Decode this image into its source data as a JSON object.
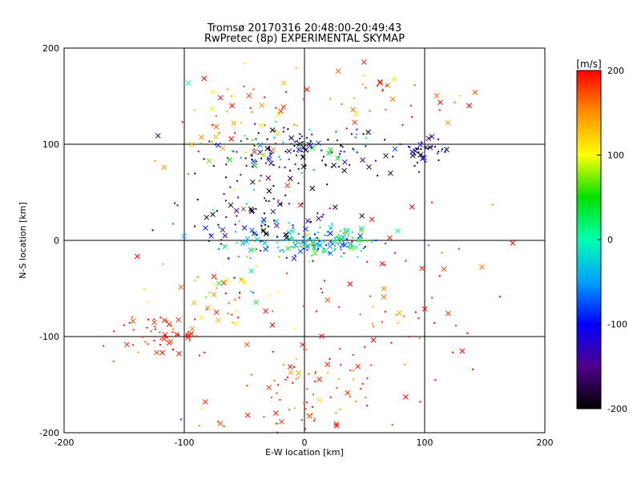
{
  "chart_data": {
    "type": "scatter",
    "title": "Tromsø 20170316 20:48:00-20:49:43",
    "subtitle": "RwPretec (8p) EXPERIMENTAL SKYMAP",
    "xlabel": "E-W location [km]",
    "ylabel": "N-S location [km]",
    "xlim": [
      -200,
      200
    ],
    "ylim": [
      -200,
      200
    ],
    "xticks": [
      "-200",
      "-100",
      "0",
      "100",
      "200"
    ],
    "yticks": [
      "-200",
      "-100",
      "0",
      "100",
      "200"
    ],
    "grid": true,
    "colorbar": {
      "label": "[m/s]",
      "range": [
        -200,
        200
      ],
      "ticks": [
        "-200",
        "-100",
        "0",
        "100",
        "200"
      ]
    },
    "marker_types": [
      "dot",
      "cross"
    ],
    "clusters": [
      {
        "x": 0,
        "y": 95,
        "sx": 35,
        "sy": 12,
        "n": 140,
        "v": -150,
        "sv": 90
      },
      {
        "x": 100,
        "y": 92,
        "sx": 12,
        "sy": 6,
        "n": 40,
        "v": -170,
        "sv": 40
      },
      {
        "x": 5,
        "y": -2,
        "sx": 30,
        "sy": 8,
        "n": 180,
        "v": -20,
        "sv": 60
      },
      {
        "x": -50,
        "y": 120,
        "sx": 35,
        "sy": 30,
        "n": 70,
        "v": 150,
        "sv": 60
      },
      {
        "x": 60,
        "y": 150,
        "sx": 40,
        "sy": 15,
        "n": 40,
        "v": 170,
        "sv": 40
      },
      {
        "x": -50,
        "y": 10,
        "sx": 25,
        "sy": 20,
        "n": 60,
        "v": -120,
        "sv": 90
      },
      {
        "x": -70,
        "y": -60,
        "sx": 30,
        "sy": 20,
        "n": 50,
        "v": 140,
        "sv": 70
      },
      {
        "x": -115,
        "y": -100,
        "sx": 20,
        "sy": 12,
        "n": 60,
        "v": 190,
        "sv": 15
      },
      {
        "x": 0,
        "y": -160,
        "sx": 35,
        "sy": 25,
        "n": 90,
        "v": 180,
        "sv": 30
      },
      {
        "x": 70,
        "y": -60,
        "sx": 45,
        "sy": 50,
        "n": 70,
        "v": 190,
        "sv": 25
      },
      {
        "x": -20,
        "y": 40,
        "sx": 40,
        "sy": 25,
        "n": 50,
        "v": -180,
        "sv": 30
      }
    ]
  }
}
